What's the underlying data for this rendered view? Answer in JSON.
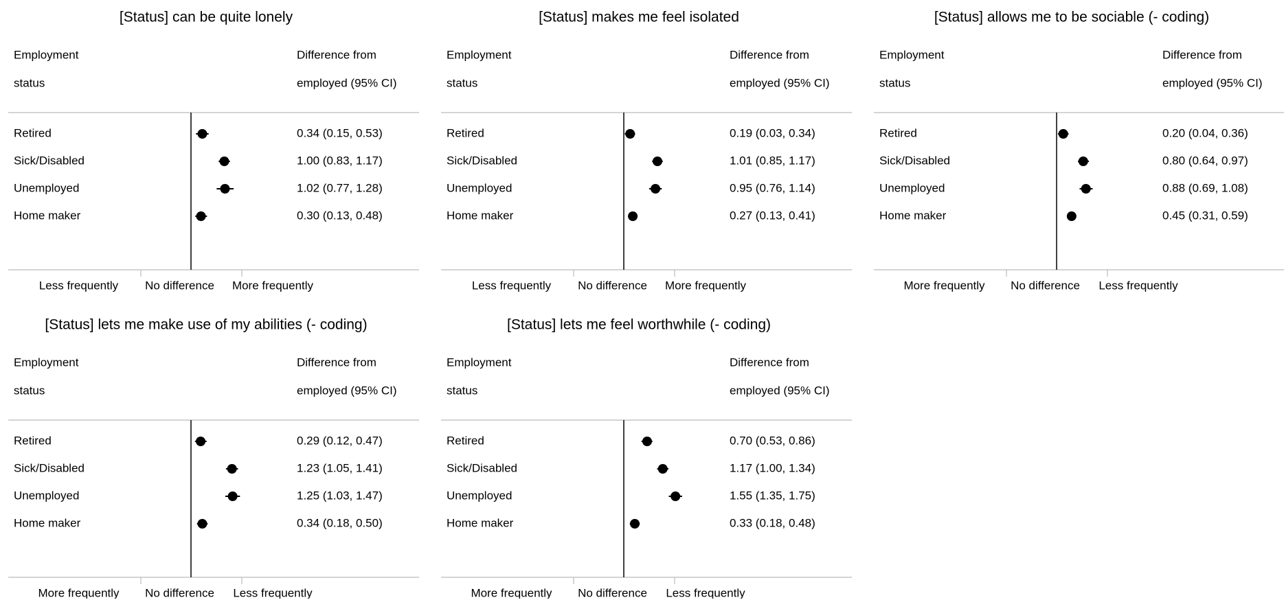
{
  "chart_data": [
    {
      "type": "forest",
      "title": "[Status] can be quite lonely",
      "column_header_left": [
        "Employment",
        "status"
      ],
      "column_header_right": [
        "Difference from",
        "employed (95% CI)"
      ],
      "axis_labels": [
        "Less frequently",
        "No difference",
        "More frequently"
      ],
      "xlim": [
        -1,
        2
      ],
      "reference_value": 0,
      "rows": [
        {
          "label": "Retired",
          "estimate": 0.34,
          "lower": 0.15,
          "upper": 0.53,
          "text": "0.34 (0.15, 0.53)"
        },
        {
          "label": "Sick/Disabled",
          "estimate": 1.0,
          "lower": 0.83,
          "upper": 1.17,
          "text": "1.00 (0.83, 1.17)"
        },
        {
          "label": "Unemployed",
          "estimate": 1.02,
          "lower": 0.77,
          "upper": 1.28,
          "text": "1.02 (0.77, 1.28)"
        },
        {
          "label": "Home maker",
          "estimate": 0.3,
          "lower": 0.13,
          "upper": 0.48,
          "text": "0.30 (0.13, 0.48)"
        }
      ]
    },
    {
      "type": "forest",
      "title": "[Status] makes me feel isolated",
      "column_header_left": [
        "Employment",
        "status"
      ],
      "column_header_right": [
        "Difference from",
        "employed (95% CI)"
      ],
      "axis_labels": [
        "Less frequently",
        "No difference",
        "More frequently"
      ],
      "xlim": [
        -1,
        2
      ],
      "reference_value": 0,
      "rows": [
        {
          "label": "Retired",
          "estimate": 0.19,
          "lower": 0.03,
          "upper": 0.34,
          "text": "0.19 (0.03, 0.34)"
        },
        {
          "label": "Sick/Disabled",
          "estimate": 1.01,
          "lower": 0.85,
          "upper": 1.17,
          "text": "1.01 (0.85, 1.17)"
        },
        {
          "label": "Unemployed",
          "estimate": 0.95,
          "lower": 0.76,
          "upper": 1.14,
          "text": "0.95 (0.76, 1.14)"
        },
        {
          "label": "Home maker",
          "estimate": 0.27,
          "lower": 0.13,
          "upper": 0.41,
          "text": "0.27 (0.13, 0.41)"
        }
      ]
    },
    {
      "type": "forest",
      "title": "[Status] allows me to be sociable (- coding)",
      "column_header_left": [
        "Employment",
        "status"
      ],
      "column_header_right": [
        "Difference from",
        "employed (95% CI)"
      ],
      "axis_labels": [
        "More frequently",
        "No difference",
        "Less frequently"
      ],
      "xlim": [
        -1,
        2
      ],
      "reference_value": 0,
      "rows": [
        {
          "label": "Retired",
          "estimate": 0.2,
          "lower": 0.04,
          "upper": 0.36,
          "text": "0.20 (0.04, 0.36)"
        },
        {
          "label": "Sick/Disabled",
          "estimate": 0.8,
          "lower": 0.64,
          "upper": 0.97,
          "text": "0.80 (0.64, 0.97)"
        },
        {
          "label": "Unemployed",
          "estimate": 0.88,
          "lower": 0.69,
          "upper": 1.08,
          "text": "0.88 (0.69, 1.08)"
        },
        {
          "label": "Home maker",
          "estimate": 0.45,
          "lower": 0.31,
          "upper": 0.59,
          "text": "0.45 (0.31, 0.59)"
        }
      ]
    },
    {
      "type": "forest",
      "title": "[Status] lets me make use of my abilities (- coding)",
      "column_header_left": [
        "Employment",
        "status"
      ],
      "column_header_right": [
        "Difference from",
        "employed (95% CI)"
      ],
      "axis_labels": [
        "More frequently",
        "No difference",
        "Less frequently"
      ],
      "xlim": [
        -1,
        2
      ],
      "reference_value": 0,
      "rows": [
        {
          "label": "Retired",
          "estimate": 0.29,
          "lower": 0.12,
          "upper": 0.47,
          "text": "0.29 (0.12, 0.47)"
        },
        {
          "label": "Sick/Disabled",
          "estimate": 1.23,
          "lower": 1.05,
          "upper": 1.41,
          "text": "1.23 (1.05, 1.41)"
        },
        {
          "label": "Unemployed",
          "estimate": 1.25,
          "lower": 1.03,
          "upper": 1.47,
          "text": "1.25 (1.03, 1.47)"
        },
        {
          "label": "Home maker",
          "estimate": 0.34,
          "lower": 0.18,
          "upper": 0.5,
          "text": "0.34 (0.18, 0.50)"
        }
      ]
    },
    {
      "type": "forest",
      "title": "[Status] lets me feel worthwhile (- coding)",
      "column_header_left": [
        "Employment",
        "status"
      ],
      "column_header_right": [
        "Difference from",
        "employed (95% CI)"
      ],
      "axis_labels": [
        "More frequently",
        "No difference",
        "Less frequently"
      ],
      "xlim": [
        -1,
        2
      ],
      "reference_value": 0,
      "rows": [
        {
          "label": "Retired",
          "estimate": 0.7,
          "lower": 0.53,
          "upper": 0.86,
          "text": "0.70 (0.53, 0.86)"
        },
        {
          "label": "Sick/Disabled",
          "estimate": 1.17,
          "lower": 1.0,
          "upper": 1.34,
          "text": "1.17 (1.00, 1.34)"
        },
        {
          "label": "Unemployed",
          "estimate": 1.55,
          "lower": 1.35,
          "upper": 1.75,
          "text": "1.55 (1.35, 1.75)"
        },
        {
          "label": "Home maker",
          "estimate": 0.33,
          "lower": 0.18,
          "upper": 0.48,
          "text": "0.33 (0.18, 0.48)"
        }
      ]
    }
  ]
}
